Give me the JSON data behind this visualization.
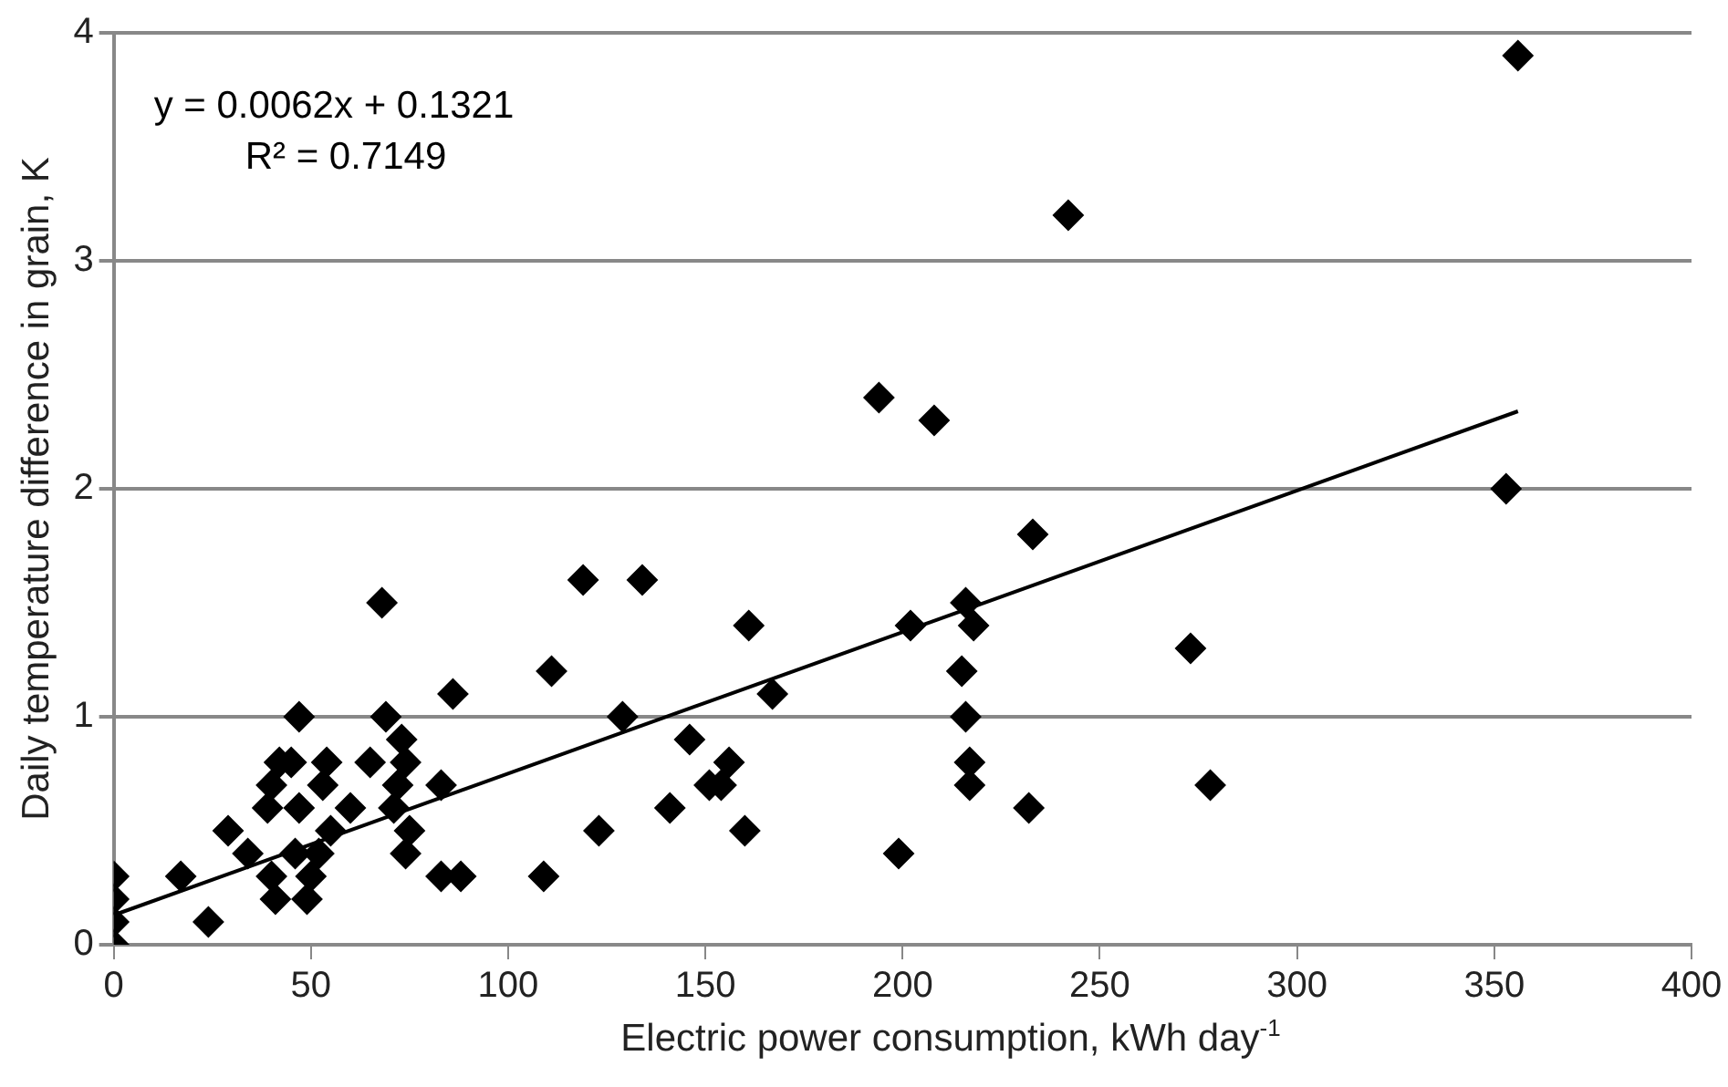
{
  "chart_data": {
    "type": "scatter",
    "xlabel": "Electric power consumption, kWh day$^{-1}$",
    "ylabel": "Daily temperature difference in grain, K",
    "annotations": [
      "y = 0.0062x + 0.1321",
      "R² = 0.7149"
    ],
    "xlim": [
      0,
      400
    ],
    "xticks": [
      0,
      50,
      100,
      150,
      200,
      250,
      300,
      350,
      400
    ],
    "ylim": [
      0,
      4
    ],
    "yticks": [
      0,
      1,
      2,
      3,
      4
    ],
    "grid": "y",
    "marker": "diamond",
    "series": [
      {
        "color": "#000000",
        "x": [
          0,
          0,
          0,
          0,
          17,
          24,
          29,
          34,
          39,
          40,
          42,
          45,
          41,
          40,
          47,
          47,
          46,
          49,
          50,
          52,
          53,
          54,
          55,
          60,
          65,
          68,
          69,
          71,
          72,
          73,
          74,
          74,
          75,
          83,
          83,
          86,
          88,
          109,
          111,
          119,
          123,
          129,
          134,
          141,
          146,
          151,
          154,
          156,
          160,
          161,
          167,
          194,
          199,
          202,
          208,
          215,
          216,
          216,
          217,
          217,
          218,
          233,
          232,
          242,
          273,
          278,
          353,
          356
        ],
        "values": [
          0,
          0.1,
          0.2,
          0.3,
          0.3,
          0.1,
          0.5,
          0.4,
          0.6,
          0.7,
          0.8,
          0.8,
          0.2,
          0.3,
          1.0,
          0.6,
          0.4,
          0.2,
          0.3,
          0.4,
          0.7,
          0.8,
          0.5,
          0.6,
          0.8,
          1.5,
          1.0,
          0.6,
          0.7,
          0.9,
          0.8,
          0.4,
          0.5,
          0.7,
          0.3,
          1.1,
          0.3,
          0.3,
          1.2,
          1.6,
          0.5,
          1.0,
          1.6,
          0.6,
          0.9,
          0.7,
          0.7,
          0.8,
          0.5,
          1.4,
          1.1,
          2.4,
          0.4,
          1.4,
          2.3,
          1.2,
          1.5,
          1.0,
          0.8,
          0.7,
          1.4,
          1.8,
          0.6,
          3.2,
          1.3,
          0.7,
          2.0,
          3.9
        ]
      },
      {
        "type": "line",
        "color": "#000000",
        "x": [
          0,
          356
        ],
        "values": [
          0.13,
          2.34
        ],
        "marker": "none",
        "line_style": "solid"
      }
    ]
  }
}
